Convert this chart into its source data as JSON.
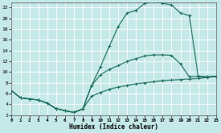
{
  "xlabel": "Humidex (Indice chaleur)",
  "bg_color": "#c5e8e8",
  "grid_color": "#b0d8d8",
  "line_color": "#1a6b5a",
  "xlim": [
    0,
    23
  ],
  "ylim": [
    2,
    23
  ],
  "xticks": [
    0,
    1,
    2,
    3,
    4,
    5,
    6,
    7,
    8,
    9,
    10,
    11,
    12,
    13,
    14,
    15,
    16,
    17,
    18,
    19,
    20,
    21,
    22,
    23
  ],
  "yticks": [
    2,
    4,
    6,
    8,
    10,
    12,
    14,
    16,
    18,
    20,
    22
  ],
  "curve1_x": [
    0,
    1,
    2,
    3,
    4,
    5,
    6,
    7,
    8,
    9,
    10,
    11,
    12,
    13,
    14,
    15,
    16,
    17,
    18,
    19,
    20,
    21,
    22,
    23
  ],
  "curve1_y": [
    6.5,
    5.2,
    5.0,
    4.8,
    4.2,
    3.2,
    2.8,
    2.5,
    3.1,
    7.5,
    11.0,
    14.8,
    18.5,
    21.0,
    21.5,
    22.8,
    23.1,
    22.8,
    22.5,
    21.0,
    20.5,
    9.2,
    9.1,
    9.2
  ],
  "curve2_x": [
    0,
    1,
    2,
    3,
    4,
    5,
    6,
    7,
    8,
    9,
    10,
    11,
    12,
    13,
    14,
    15,
    16,
    17,
    18,
    19,
    20,
    21,
    22,
    23
  ],
  "curve2_y": [
    6.5,
    5.2,
    5.0,
    4.8,
    4.2,
    3.2,
    2.8,
    2.5,
    3.1,
    7.5,
    9.5,
    10.5,
    11.2,
    12.0,
    12.5,
    13.0,
    13.2,
    13.2,
    13.1,
    11.5,
    9.1,
    9.2,
    9.1,
    9.2
  ],
  "curve3_x": [
    0,
    1,
    2,
    3,
    4,
    5,
    6,
    7,
    8,
    9,
    10,
    11,
    12,
    13,
    14,
    15,
    16,
    17,
    18,
    19,
    20,
    21,
    22,
    23
  ],
  "curve3_y": [
    6.5,
    5.2,
    5.0,
    4.8,
    4.2,
    3.2,
    2.8,
    2.5,
    3.1,
    5.5,
    6.2,
    6.8,
    7.2,
    7.5,
    7.8,
    8.0,
    8.2,
    8.4,
    8.5,
    8.6,
    8.7,
    8.8,
    9.0,
    9.2
  ]
}
